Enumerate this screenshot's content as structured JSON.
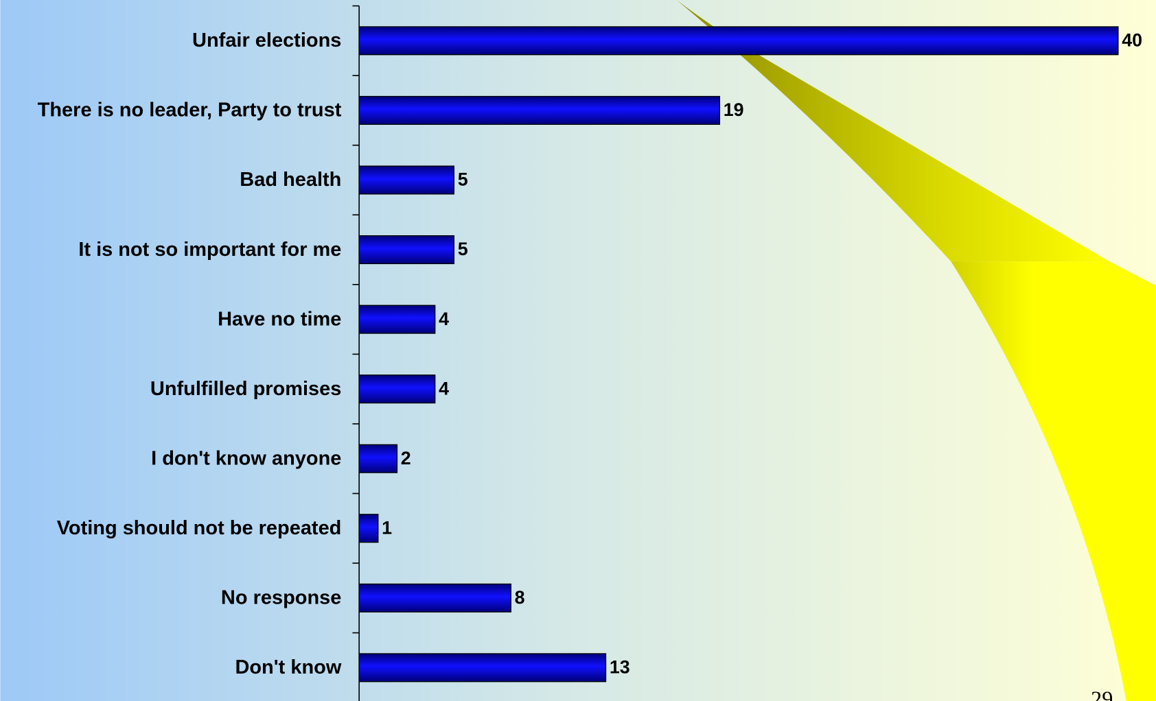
{
  "chart_data": {
    "type": "barh",
    "categories": [
      "Unfair elections",
      "There is no leader, Party to trust",
      "Bad health",
      "It is not so important for me",
      "Have no time",
      "Unfulfilled promises",
      "I don't know anyone",
      "Voting should not be repeated",
      "No response",
      "Don't know"
    ],
    "values": [
      40,
      19,
      5,
      5,
      4,
      4,
      2,
      1,
      8,
      13
    ],
    "color": "#0a0af0",
    "xlim": [
      0,
      40
    ]
  },
  "page_number": "29"
}
